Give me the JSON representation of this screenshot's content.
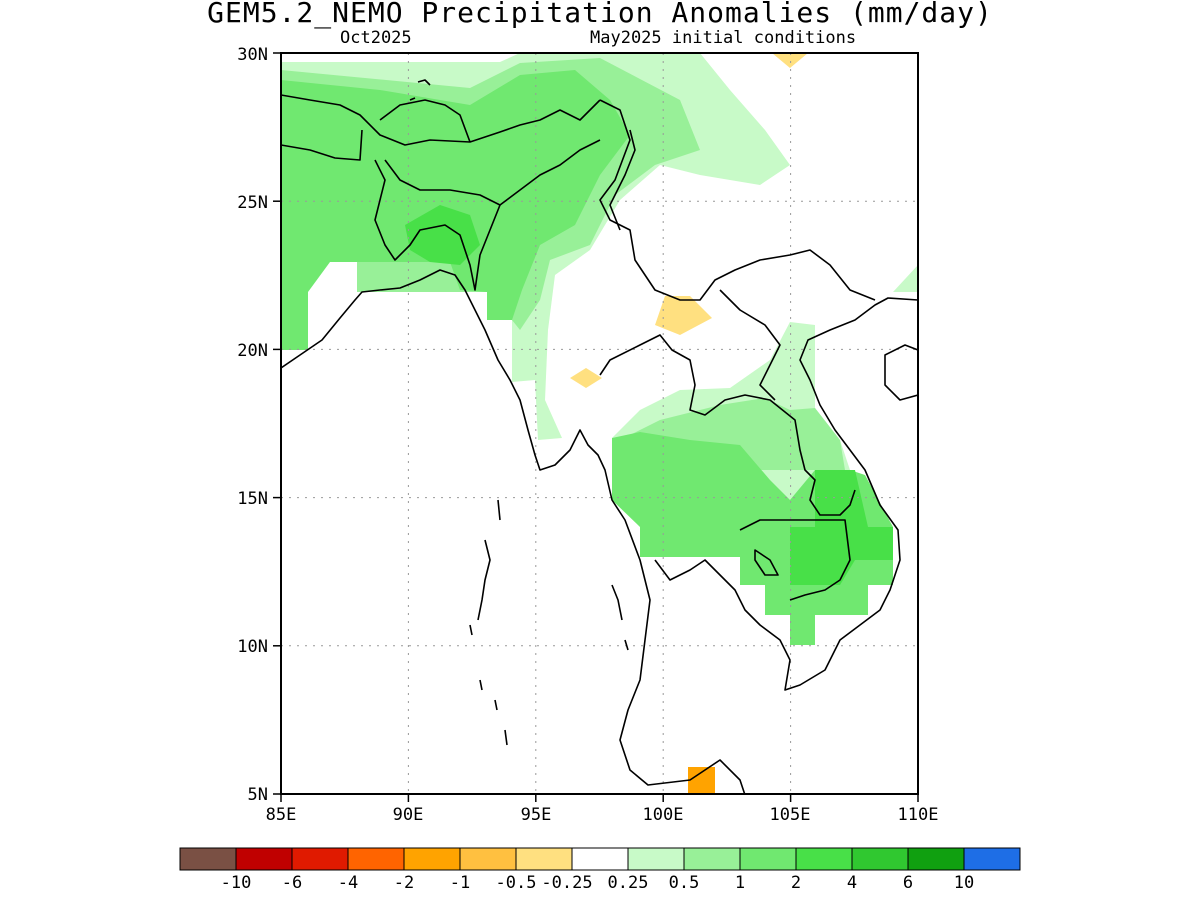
{
  "header": {
    "title": "GEM5.2_NEMO Precipitation Anomalies (mm/day)",
    "valid_month": "Oct2025",
    "init_conditions": "May2025 initial conditions"
  },
  "map": {
    "lon_range": [
      85,
      110
    ],
    "lat_range": [
      5,
      30
    ],
    "x_ticks": [
      "85E",
      "90E",
      "95E",
      "100E",
      "105E",
      "110E"
    ],
    "y_ticks": [
      "5N",
      "10N",
      "15N",
      "20N",
      "25N",
      "30N"
    ],
    "grid": "dotted",
    "land_outline_color": "#000000"
  },
  "legend": {
    "colors": [
      "#7a5044",
      "#c00000",
      "#e01a00",
      "#ff6400",
      "#ffa300",
      "#ffc040",
      "#ffe080",
      "#ffffff",
      "#c8fac8",
      "#98f098",
      "#70e870",
      "#48e048",
      "#30c830",
      "#10a010",
      "#1e6ee6"
    ],
    "labels": [
      "-10",
      "-6",
      "-4",
      "-2",
      "-1",
      "-0.5",
      "-0.25",
      "0.25",
      "0.5",
      "1",
      "2",
      "4",
      "6",
      "10"
    ]
  }
}
